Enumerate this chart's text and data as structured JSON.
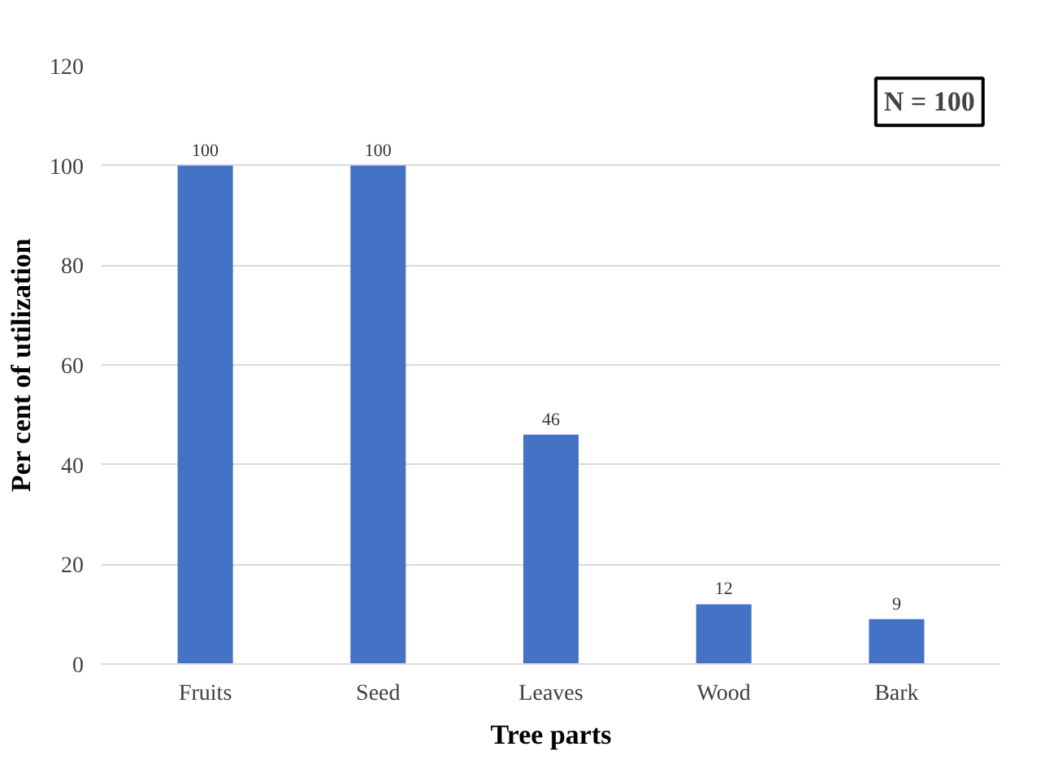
{
  "chart_data": {
    "type": "bar",
    "xlabel": "Tree parts",
    "ylabel": "Per cent of utilization",
    "categories": [
      "Fruits",
      "Seed",
      "Leaves",
      "Wood",
      "Bark"
    ],
    "values": [
      100,
      100,
      46,
      12,
      9
    ],
    "color": "#4472c4",
    "ylim": [
      0,
      120
    ],
    "yticks": [
      0,
      20,
      40,
      60,
      80,
      100,
      120
    ],
    "grid": "y",
    "data_labels": true,
    "annotations": [
      "N = 100"
    ]
  }
}
